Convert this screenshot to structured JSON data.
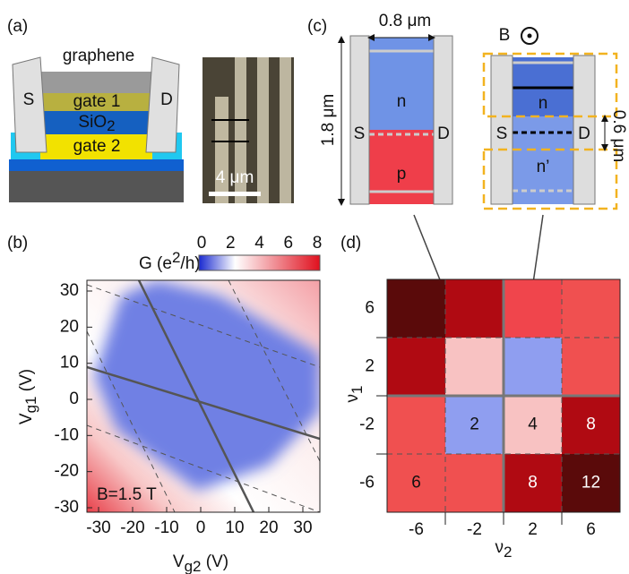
{
  "panel_a": {
    "label": "(a)",
    "graphene": "graphene",
    "gate1": "gate 1",
    "oxide": {
      "text": "SiO",
      "sub": "2"
    },
    "gate2": "gate 2",
    "source": "S",
    "drain": "D",
    "scale_bar": "4 μm"
  },
  "panel_b": {
    "label": "(b)",
    "colorbar": {
      "title": {
        "pre": "G (e",
        "sup": "2",
        "post": "/h)"
      },
      "ticks": [
        0,
        2,
        4,
        6,
        8
      ]
    },
    "xticks": [
      -30,
      -20,
      -10,
      0,
      10,
      20,
      30
    ],
    "yticks": [
      30,
      20,
      10,
      0,
      -10,
      -20,
      -30
    ],
    "xlabel": {
      "text": "V",
      "sub": "g2",
      "rest": " (V)"
    },
    "ylabel": {
      "text": "V",
      "sub": "g1",
      "rest": " (V)"
    },
    "annotation": "B=1.5 T"
  },
  "panel_c": {
    "label": "(c)",
    "width": "0.8 μm",
    "length": "1.8 μm",
    "left": {
      "source": "S",
      "drain": "D",
      "top": "n",
      "bottom": "p"
    },
    "field": "B",
    "right": {
      "source": "S",
      "drain": "D",
      "top": "n",
      "bottom": "n’",
      "spacing": "0.6 μm"
    }
  },
  "panel_d": {
    "label": "(d)",
    "ylabel": {
      "text": "ν",
      "sub": "1"
    },
    "xlabel": {
      "text": "ν",
      "sub": "2"
    },
    "yticks": [
      6,
      2,
      -2,
      -6
    ],
    "xticks": [
      -6,
      -2,
      2,
      6
    ],
    "rows": [
      [
        {
          "color": "#5a0a0a"
        },
        {
          "color": "#b00a12"
        },
        {
          "color": "#f0454c"
        },
        {
          "color": "#f05050"
        }
      ],
      [
        {
          "color": "#b00a12"
        },
        {
          "color": "#f8c2c2"
        },
        {
          "color": "#8f9ef0"
        },
        {
          "color": "#f05050"
        }
      ],
      [
        {
          "color": "#f05050"
        },
        {
          "color": "#8f9ef0",
          "label": "2"
        },
        {
          "color": "#f8c2c2",
          "label": "4"
        },
        {
          "color": "#b00a12",
          "label": "8"
        }
      ],
      [
        {
          "color": "#f05050",
          "label": "6"
        },
        {
          "color": "#f05050"
        },
        {
          "color": "#b00a12",
          "label": "8"
        },
        {
          "color": "#5a0a0a",
          "label": "12"
        }
      ]
    ]
  }
}
